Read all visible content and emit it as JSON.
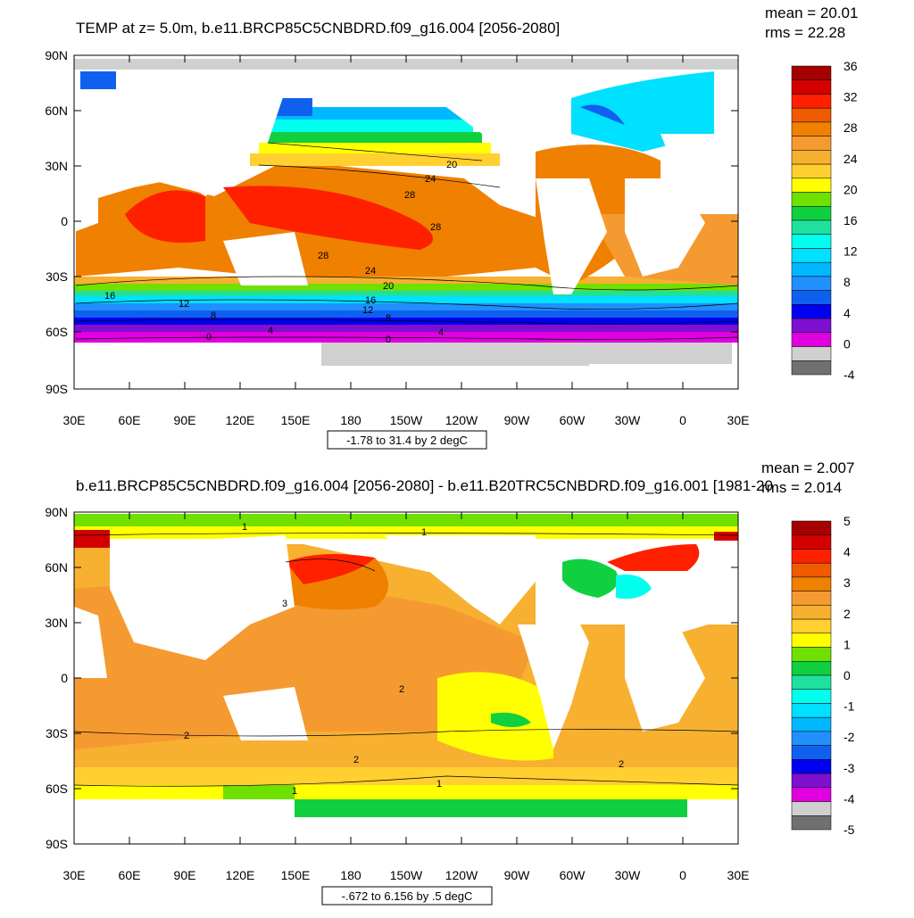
{
  "panels": [
    {
      "title": "TEMP at z=   5.0m, b.e11.BRCP85C5CNBDRD.f09_g16.004 [2056-2080]",
      "mean": "mean = 20.01",
      "rms": "rms = 22.28",
      "info": "-1.78 to 31.4 by 2 degC",
      "lat_labels": [
        "90N",
        "60N",
        "30N",
        "0",
        "30S",
        "60S",
        "90S"
      ],
      "lon_labels": [
        "30E",
        "60E",
        "90E",
        "120E",
        "150E",
        "180",
        "150W",
        "120W",
        "90W",
        "60W",
        "30W",
        "0",
        "30E"
      ],
      "colorbar": {
        "labels": [
          "36",
          "32",
          "28",
          "24",
          "20",
          "16",
          "12",
          "8",
          "4",
          "0",
          "-4"
        ],
        "colors": [
          "#a50000",
          "#d40000",
          "#ff2000",
          "#f05a00",
          "#f08000",
          "#f59a30",
          "#f7b030",
          "#ffd030",
          "#ffff00",
          "#70e000",
          "#10d040",
          "#20e0a0",
          "#00ffee",
          "#00e0ff",
          "#00b8ff",
          "#2090ff",
          "#1060f0",
          "#0000f0",
          "#8010d0",
          "#e000e0",
          "#d0d0d0",
          "#707070"
        ]
      },
      "contour_labels": [
        "20",
        "24",
        "28",
        "28",
        "28",
        "24",
        "20",
        "16",
        "16",
        "12",
        "12",
        "8",
        "8",
        "4",
        "4",
        "0",
        "0"
      ]
    },
    {
      "title": "b.e11.BRCP85C5CNBDRD.f09_g16.004 [2056-2080] - b.e11.B20TRC5CNBDRD.f09_g16.001 [1981-20",
      "mean": "mean = 2.007",
      "rms": "rms = 2.014",
      "info": "-.672 to 6.156 by .5 degC",
      "lat_labels": [
        "90N",
        "60N",
        "30N",
        "0",
        "30S",
        "60S",
        "90S"
      ],
      "lon_labels": [
        "30E",
        "60E",
        "90E",
        "120E",
        "150E",
        "180",
        "150W",
        "120W",
        "90W",
        "60W",
        "30W",
        "0",
        "30E"
      ],
      "colorbar": {
        "labels": [
          "5",
          "4",
          "3",
          "2",
          "1",
          "0",
          "-1",
          "-2",
          "-3",
          "-4",
          "-5"
        ],
        "colors": [
          "#a50000",
          "#d40000",
          "#ff2000",
          "#f05a00",
          "#f08000",
          "#f59a30",
          "#f7b030",
          "#ffd030",
          "#ffff00",
          "#70e000",
          "#10d040",
          "#20e0a0",
          "#00ffee",
          "#00e0ff",
          "#00b8ff",
          "#2090ff",
          "#1060f0",
          "#0000f0",
          "#8010d0",
          "#e000e0",
          "#d0d0d0",
          "#707070"
        ]
      },
      "contour_labels": [
        "1",
        "1",
        "3",
        "2",
        "2",
        "2",
        "2",
        "1",
        "1"
      ]
    }
  ]
}
